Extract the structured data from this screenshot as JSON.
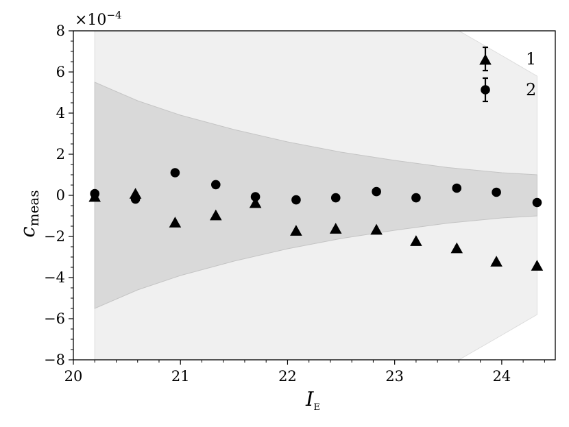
{
  "chart_data": {
    "type": "scatter",
    "xlabel": "I",
    "xlabel_subscript": "E",
    "ylabel": "c",
    "ylabel_subscript": "meas",
    "y_multiplier": "×10",
    "y_multiplier_exp": "−4",
    "xlim": [
      20.0,
      24.5
    ],
    "ylim": [
      -8,
      8
    ],
    "x_ticks": [
      20,
      21,
      22,
      23,
      24
    ],
    "x_tick_labels": [
      "20",
      "21",
      "22",
      "23",
      "24"
    ],
    "y_ticks": [
      -8,
      -6,
      -4,
      -2,
      0,
      2,
      4,
      6,
      8
    ],
    "y_tick_labels": [
      "−8",
      "−6",
      "−4",
      "−2",
      "0",
      "2",
      "4",
      "6",
      "8"
    ],
    "grid": false,
    "legend_position": "top-right",
    "bands": [
      {
        "fill": "#f0f0f0",
        "edge": "#dcdcdc",
        "points": [
          [
            20.2,
            8.0
          ],
          [
            20.6,
            8.0
          ],
          [
            21.0,
            8.0
          ],
          [
            21.5,
            8.0
          ],
          [
            22.0,
            8.0
          ],
          [
            22.5,
            8.0
          ],
          [
            23.0,
            8.0
          ],
          [
            23.5,
            8.0
          ],
          [
            23.6,
            8.0
          ],
          [
            24.0,
            6.8
          ],
          [
            24.33,
            5.8
          ]
        ],
        "lower_mirror": true
      },
      {
        "fill": "#d9d9d9",
        "edge": "#c4c4c4",
        "points": [
          [
            20.2,
            5.5
          ],
          [
            20.6,
            4.6
          ],
          [
            21.0,
            3.9
          ],
          [
            21.5,
            3.2
          ],
          [
            22.0,
            2.6
          ],
          [
            22.5,
            2.1
          ],
          [
            23.0,
            1.7
          ],
          [
            23.5,
            1.35
          ],
          [
            24.0,
            1.1
          ],
          [
            24.33,
            1.0
          ]
        ],
        "lower_mirror": true
      }
    ],
    "series": [
      {
        "name": "1",
        "marker": "triangle",
        "points": [
          {
            "x": 20.2,
            "y": -0.1
          },
          {
            "x": 20.58,
            "y": 0.05
          },
          {
            "x": 20.95,
            "y": -1.35
          },
          {
            "x": 21.33,
            "y": -1.0
          },
          {
            "x": 21.7,
            "y": -0.4
          },
          {
            "x": 22.08,
            "y": -1.75
          },
          {
            "x": 22.45,
            "y": -1.65
          },
          {
            "x": 22.83,
            "y": -1.7
          },
          {
            "x": 23.2,
            "y": -2.25
          },
          {
            "x": 23.58,
            "y": -2.6
          },
          {
            "x": 23.95,
            "y": -3.25
          },
          {
            "x": 24.33,
            "y": -3.45
          }
        ]
      },
      {
        "name": "2",
        "marker": "circle",
        "points": [
          {
            "x": 20.2,
            "y": 0.08
          },
          {
            "x": 20.58,
            "y": -0.18
          },
          {
            "x": 20.95,
            "y": 1.1
          },
          {
            "x": 21.33,
            "y": 0.52
          },
          {
            "x": 21.7,
            "y": -0.07
          },
          {
            "x": 22.08,
            "y": -0.22
          },
          {
            "x": 22.45,
            "y": -0.12
          },
          {
            "x": 22.83,
            "y": 0.18
          },
          {
            "x": 23.2,
            "y": -0.12
          },
          {
            "x": 23.58,
            "y": 0.35
          },
          {
            "x": 23.95,
            "y": 0.15
          },
          {
            "x": 24.33,
            "y": -0.35
          }
        ]
      }
    ]
  }
}
